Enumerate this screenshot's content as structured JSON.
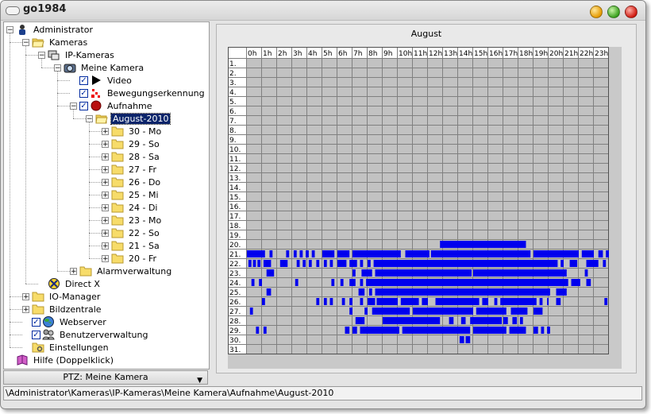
{
  "window": {
    "title": "go1984"
  },
  "tree": [
    {
      "label": "Administrator",
      "level": 0,
      "icon": "user-icon",
      "expander": "−"
    },
    {
      "label": "Kameras",
      "level": 1,
      "icon": "folder-open-icon",
      "expander": "−"
    },
    {
      "label": "IP-Kameras",
      "level": 2,
      "icon": "network-camera-icon",
      "expander": "−"
    },
    {
      "label": "Meine Kamera",
      "level": 3,
      "icon": "camera-icon",
      "expander": "−"
    },
    {
      "label": "Video",
      "level": 4,
      "icon": "play-icon",
      "checked": true
    },
    {
      "label": "Bewegungserkennung",
      "level": 4,
      "icon": "motion-icon",
      "checked": true
    },
    {
      "label": "Aufnahme",
      "level": 4,
      "icon": "record-icon",
      "checked": true,
      "expander": "−"
    },
    {
      "label": "August-2010",
      "level": 5,
      "icon": "folder-open-icon",
      "expander": "−",
      "selected": true
    },
    {
      "label": "30 - Mo",
      "level": 6,
      "icon": "folder-icon",
      "expander": "+"
    },
    {
      "label": "29 - So",
      "level": 6,
      "icon": "folder-icon",
      "expander": "+"
    },
    {
      "label": "28 - Sa",
      "level": 6,
      "icon": "folder-icon",
      "expander": "+"
    },
    {
      "label": "27 - Fr",
      "level": 6,
      "icon": "folder-icon",
      "expander": "+"
    },
    {
      "label": "26 - Do",
      "level": 6,
      "icon": "folder-icon",
      "expander": "+"
    },
    {
      "label": "25 - Mi",
      "level": 6,
      "icon": "folder-icon",
      "expander": "+"
    },
    {
      "label": "24 - Di",
      "level": 6,
      "icon": "folder-icon",
      "expander": "+"
    },
    {
      "label": "23 - Mo",
      "level": 6,
      "icon": "folder-icon",
      "expander": "+"
    },
    {
      "label": "22 - So",
      "level": 6,
      "icon": "folder-icon",
      "expander": "+"
    },
    {
      "label": "21 - Sa",
      "level": 6,
      "icon": "folder-icon",
      "expander": "+"
    },
    {
      "label": "20 - Fr",
      "level": 6,
      "icon": "folder-icon",
      "expander": "+"
    },
    {
      "label": "Alarmverwaltung",
      "level": 4,
      "icon": "folder-icon",
      "expander": "+"
    },
    {
      "label": "Direct X",
      "level": 2,
      "icon": "directx-icon"
    },
    {
      "label": "IO-Manager",
      "level": 1,
      "icon": "folder-icon",
      "expander": "+"
    },
    {
      "label": "Bildzentrale",
      "level": 1,
      "icon": "folder-icon",
      "expander": "+"
    },
    {
      "label": "Webserver",
      "level": 1,
      "icon": "globe-icon",
      "checked": true
    },
    {
      "label": "Benutzerverwaltung",
      "level": 1,
      "icon": "users-icon",
      "checked": true
    },
    {
      "label": "Einstellungen",
      "level": 1,
      "icon": "settings-folder-icon"
    },
    {
      "label": "Hilfe (Doppelklick)",
      "level": 0,
      "icon": "help-book-icon"
    }
  ],
  "ptz": {
    "label": "PTZ: Meine Kamera"
  },
  "status": {
    "path": "\\Administrator\\Kameras\\IP-Kameras\\Meine Kamera\\Aufnahme\\August-2010"
  },
  "colors": {
    "bar": "#0000ee",
    "grid_bg": "#c2c2c2",
    "grid_line": "#808080",
    "header_bg": "#ffffff"
  },
  "chart_data": {
    "type": "heatmap",
    "title": "August",
    "hours": [
      "0h",
      "1h",
      "2h",
      "3h",
      "4h",
      "5h",
      "6h",
      "7h",
      "8h",
      "9h",
      "10h",
      "11h",
      "12h",
      "13h",
      "14h",
      "15h",
      "16h",
      "17h",
      "18h",
      "19h",
      "20h",
      "21h",
      "22h",
      "23h"
    ],
    "days": [
      "1.",
      "2.",
      "3.",
      "4.",
      "5.",
      "6.",
      "7.",
      "8.",
      "9.",
      "10.",
      "11.",
      "12.",
      "13.",
      "14.",
      "15.",
      "16.",
      "17.",
      "18.",
      "19.",
      "20.",
      "21.",
      "22.",
      "23.",
      "24.",
      "25.",
      "26.",
      "27.",
      "28.",
      "29.",
      "30.",
      "31."
    ],
    "recordings": [
      {
        "day": 20,
        "intervals": [
          [
            12.8,
            18.5
          ]
        ]
      },
      {
        "day": 21,
        "intervals": [
          [
            0.0,
            1.2
          ],
          [
            1.5,
            1.7
          ],
          [
            2.6,
            2.8
          ],
          [
            3.1,
            3.3
          ],
          [
            3.5,
            3.7
          ],
          [
            3.9,
            4.1
          ],
          [
            4.3,
            4.5
          ],
          [
            5.0,
            5.8
          ],
          [
            6.0,
            6.8
          ],
          [
            7.0,
            10.2
          ],
          [
            10.5,
            12.1
          ],
          [
            12.2,
            18.8
          ],
          [
            19.0,
            22.0
          ],
          [
            22.2,
            23.0
          ],
          [
            23.3,
            23.6
          ],
          [
            23.8,
            24.0
          ]
        ]
      },
      {
        "day": 22,
        "intervals": [
          [
            0.1,
            0.3
          ],
          [
            0.4,
            0.6
          ],
          [
            0.7,
            0.9
          ],
          [
            1.1,
            1.6
          ],
          [
            2.2,
            2.7
          ],
          [
            3.3,
            3.5
          ],
          [
            3.7,
            3.9
          ],
          [
            4.1,
            4.3
          ],
          [
            4.6,
            4.8
          ],
          [
            5.1,
            5.3
          ],
          [
            5.5,
            5.7
          ],
          [
            6.0,
            6.6
          ],
          [
            6.8,
            7.3
          ],
          [
            7.5,
            7.7
          ],
          [
            8.0,
            8.2
          ],
          [
            8.4,
            20.6
          ],
          [
            20.8,
            21.0
          ],
          [
            21.4,
            21.9
          ],
          [
            22.5,
            23.3
          ],
          [
            23.6,
            23.8
          ]
        ]
      },
      {
        "day": 23,
        "intervals": [
          [
            1.3,
            1.8
          ],
          [
            7.0,
            7.2
          ],
          [
            7.6,
            8.3
          ],
          [
            8.5,
            14.9
          ],
          [
            15.0,
            21.2
          ],
          [
            22.4,
            22.6
          ]
        ]
      },
      {
        "day": 24,
        "intervals": [
          [
            0.3,
            0.5
          ],
          [
            0.8,
            1.0
          ],
          [
            3.2,
            3.4
          ],
          [
            5.6,
            5.8
          ],
          [
            6.2,
            6.4
          ],
          [
            6.8,
            7.2
          ],
          [
            7.5,
            7.7
          ],
          [
            7.9,
            21.3
          ],
          [
            21.5,
            22.1
          ],
          [
            22.5,
            22.8
          ]
        ]
      },
      {
        "day": 25,
        "intervals": [
          [
            1.3,
            1.6
          ],
          [
            7.4,
            7.8
          ],
          [
            8.1,
            8.3
          ],
          [
            8.5,
            20.1
          ],
          [
            20.5,
            21.2
          ]
        ]
      },
      {
        "day": 26,
        "intervals": [
          [
            1.0,
            1.2
          ],
          [
            4.6,
            4.8
          ],
          [
            5.1,
            5.3
          ],
          [
            5.5,
            5.7
          ],
          [
            6.3,
            6.5
          ],
          [
            6.8,
            7.0
          ],
          [
            7.5,
            7.7
          ],
          [
            8.0,
            8.5
          ],
          [
            8.6,
            10.0
          ],
          [
            10.2,
            11.4
          ],
          [
            11.6,
            12.0
          ],
          [
            12.5,
            15.4
          ],
          [
            15.6,
            16.0
          ],
          [
            16.4,
            16.6
          ],
          [
            16.8,
            19.2
          ],
          [
            19.4,
            19.6
          ],
          [
            19.9,
            20.0
          ],
          [
            20.5,
            20.8
          ],
          [
            23.7,
            23.9
          ]
        ]
      },
      {
        "day": 27,
        "intervals": [
          [
            0.2,
            0.4
          ],
          [
            6.8,
            7.0
          ],
          [
            7.8,
            8.0
          ],
          [
            8.3,
            10.8
          ],
          [
            11.0,
            15.0
          ],
          [
            15.2,
            17.2
          ],
          [
            17.5,
            18.6
          ],
          [
            19.0,
            19.6
          ]
        ]
      },
      {
        "day": 28,
        "intervals": [
          [
            7.2,
            7.8
          ],
          [
            9.0,
            12.8
          ],
          [
            13.4,
            13.7
          ],
          [
            14.2,
            14.5
          ],
          [
            14.8,
            16.9
          ],
          [
            17.0,
            17.3
          ],
          [
            17.6,
            17.9
          ],
          [
            18.1,
            18.3
          ]
        ]
      },
      {
        "day": 29,
        "intervals": [
          [
            0.6,
            0.8
          ],
          [
            1.1,
            1.3
          ],
          [
            6.5,
            6.8
          ],
          [
            7.0,
            7.3
          ],
          [
            7.5,
            10.1
          ],
          [
            10.3,
            14.8
          ],
          [
            15.0,
            17.2
          ],
          [
            17.4,
            18.5
          ],
          [
            19.0,
            19.3
          ],
          [
            19.5,
            19.7
          ],
          [
            19.9,
            20.1
          ]
        ]
      },
      {
        "day": 30,
        "intervals": [
          [
            14.1,
            14.4
          ],
          [
            14.5,
            14.8
          ]
        ]
      }
    ]
  }
}
